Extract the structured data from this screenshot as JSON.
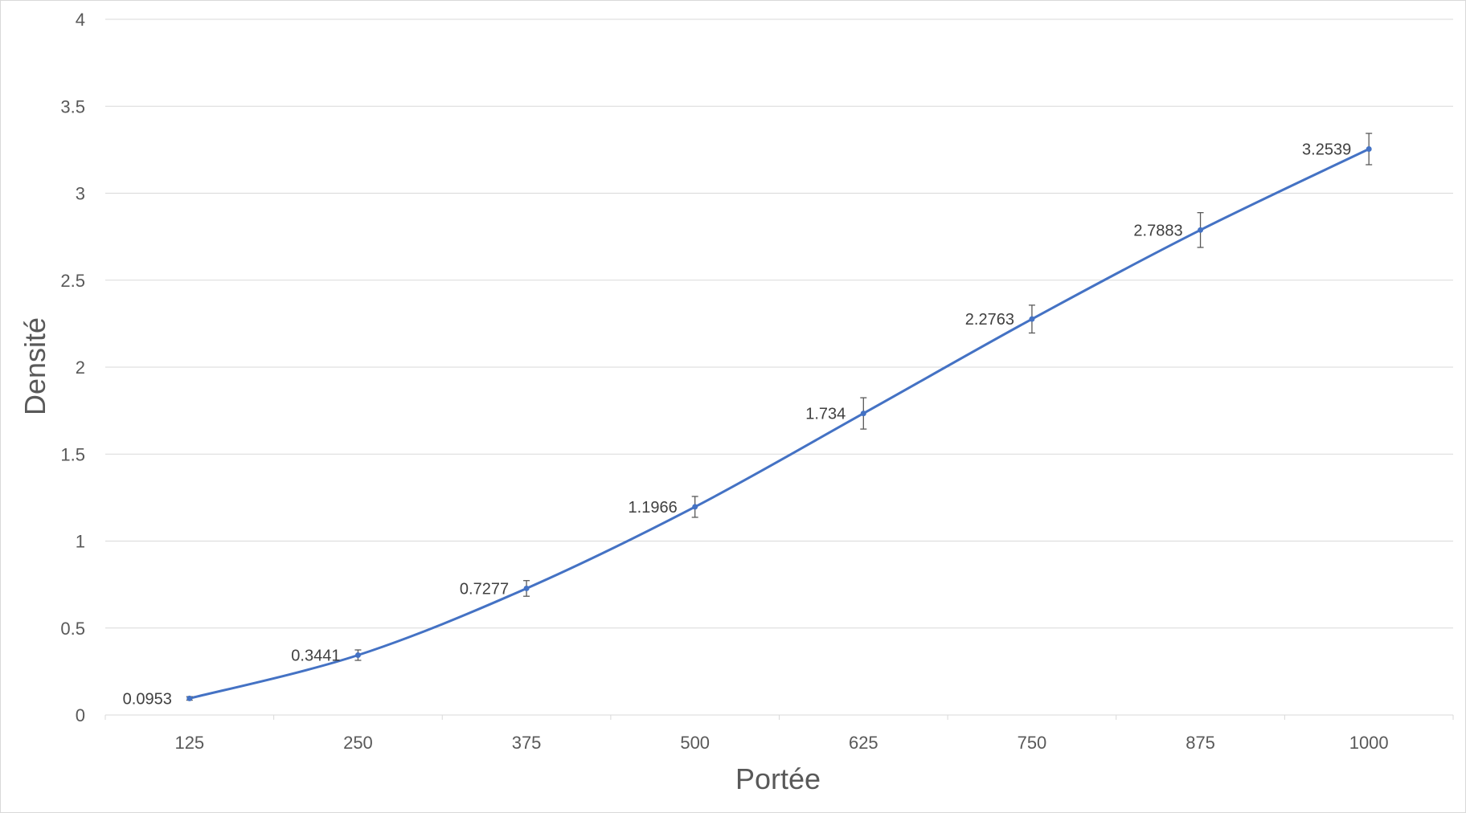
{
  "chart_data": {
    "type": "line",
    "xlabel": "Portée",
    "ylabel": "Densité",
    "x": [
      125,
      250,
      375,
      500,
      625,
      750,
      875,
      1000
    ],
    "categories": [
      "125",
      "250",
      "375",
      "500",
      "625",
      "750",
      "875",
      "1000"
    ],
    "values": [
      0.0953,
      0.3441,
      0.7277,
      1.1966,
      1.734,
      2.2763,
      2.7883,
      3.2539
    ],
    "data_labels": [
      "0.0953",
      "0.3441",
      "0.7277",
      "1.1966",
      "1.734",
      "2.2763",
      "2.7883",
      "3.2539"
    ],
    "error": [
      0.01,
      0.03,
      0.045,
      0.06,
      0.09,
      0.08,
      0.1,
      0.09
    ],
    "ylim": [
      0,
      4
    ],
    "yticks": [
      "0",
      "0.5",
      "1",
      "1.5",
      "2",
      "2.5",
      "3",
      "3.5",
      "4"
    ],
    "ytick_values": [
      0,
      0.5,
      1,
      1.5,
      2,
      2.5,
      3,
      3.5,
      4
    ],
    "grid": true,
    "legend": "none",
    "colors": {
      "line": "#4472C4",
      "grid": "#d9d9d9",
      "error_bar": "#595959"
    }
  }
}
